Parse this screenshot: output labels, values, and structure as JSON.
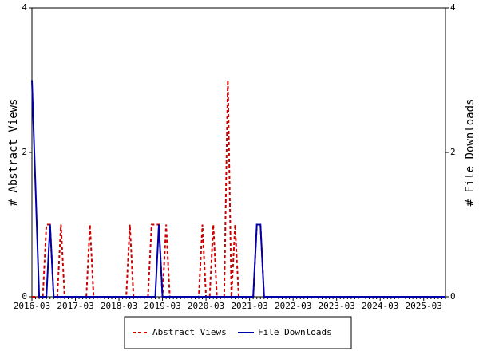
{
  "chart_data": {
    "type": "line",
    "y_label": "# Abstract Views",
    "y2_label": "# File Downloads",
    "categories": [
      "2016-03",
      null,
      null,
      null,
      null,
      null,
      null,
      null,
      null,
      null,
      null,
      null,
      "2017-03",
      null,
      null,
      null,
      null,
      null,
      null,
      null,
      null,
      null,
      null,
      null,
      "2018-03",
      null,
      null,
      null,
      null,
      null,
      null,
      null,
      null,
      null,
      null,
      null,
      "2019-03",
      null,
      null,
      null,
      null,
      null,
      null,
      null,
      null,
      null,
      null,
      null,
      "2020-03",
      null,
      null,
      null,
      null,
      null,
      null,
      null,
      null,
      null,
      null,
      null,
      "2021-03",
      null,
      null,
      null,
      null,
      null,
      null,
      null,
      null,
      null,
      null,
      null,
      "2022-03",
      null,
      null,
      null,
      null,
      null,
      null,
      null,
      null,
      null,
      null,
      null,
      "2023-03",
      null,
      null,
      null,
      null,
      null,
      null,
      null,
      null,
      null,
      null,
      null,
      "2024-03",
      null,
      null,
      null,
      null,
      null,
      null,
      null,
      null,
      null,
      null,
      null,
      "2025-03",
      null,
      null,
      null,
      null,
      null,
      null
    ],
    "series": [
      {
        "name": "Abstract Views",
        "color": "#cc0000",
        "dashed": true,
        "values": [
          0,
          0,
          0,
          0,
          1,
          1,
          0,
          0,
          1,
          0,
          0,
          0,
          0,
          0,
          0,
          0,
          1,
          0,
          0,
          0,
          0,
          0,
          0,
          0,
          0,
          0,
          0,
          1,
          0,
          0,
          0,
          0,
          0,
          1,
          1,
          1,
          0,
          1,
          0,
          0,
          0,
          0,
          0,
          0,
          0,
          0,
          0,
          1,
          0,
          0,
          1,
          0,
          0,
          0,
          3,
          0,
          1,
          0,
          0,
          0,
          0,
          0,
          1,
          1,
          0,
          0,
          0,
          0,
          0,
          0,
          0,
          0,
          0,
          0,
          0,
          0,
          0,
          0,
          0,
          0,
          0,
          0,
          0,
          0,
          0,
          0,
          0,
          0,
          0,
          0,
          0,
          0,
          0,
          0,
          0,
          0,
          0,
          0,
          0,
          0,
          0,
          0,
          0,
          0,
          0,
          0,
          0,
          0,
          0,
          0,
          0,
          0,
          0,
          0,
          0
        ]
      },
      {
        "name": "File Downloads",
        "color": "#0000aa",
        "dashed": false,
        "axis": "y2",
        "values": [
          3,
          1.5,
          0,
          0,
          0,
          1,
          0,
          0,
          0,
          0,
          0,
          0,
          0,
          0,
          0,
          0,
          0,
          0,
          0,
          0,
          0,
          0,
          0,
          0,
          0,
          0,
          0,
          0,
          0,
          0,
          0,
          0,
          0,
          0,
          0,
          1,
          0,
          0,
          0,
          0,
          0,
          0,
          0,
          0,
          0,
          0,
          0,
          0,
          0,
          0,
          0,
          0,
          0,
          0,
          0,
          0,
          0,
          0,
          0,
          0,
          0,
          0,
          1,
          1,
          0,
          0,
          0,
          0,
          0,
          0,
          0,
          0,
          0,
          0,
          0,
          0,
          0,
          0,
          0,
          0,
          0,
          0,
          0,
          0,
          0,
          0,
          0,
          0,
          0,
          0,
          0,
          0,
          0,
          0,
          0,
          0,
          0,
          0,
          0,
          0,
          0,
          0,
          0,
          0,
          0,
          0,
          0,
          0,
          0,
          0,
          0,
          0,
          0,
          0,
          0
        ]
      }
    ],
    "ylim": [
      0,
      4
    ],
    "yticks": [
      0,
      2,
      4
    ],
    "y2lim": [
      0,
      4
    ],
    "y2ticks": [
      0,
      2,
      4
    ],
    "legend": "bottom"
  }
}
